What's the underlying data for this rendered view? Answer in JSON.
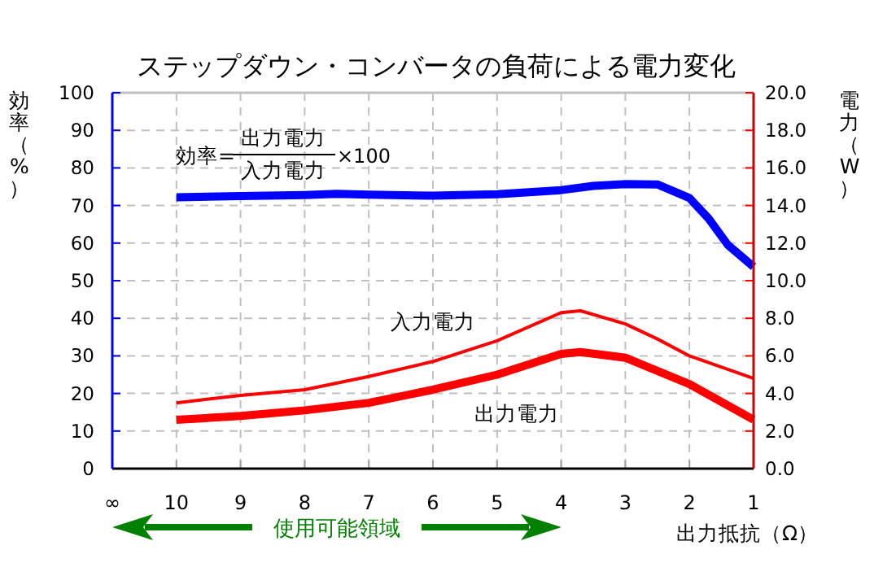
{
  "chart_data": {
    "type": "line",
    "title": "ステップダウン・コンバータの負荷による電力変化",
    "xlabel": "出力抵抗（Ω）",
    "ylabel": "効率（%）",
    "y2label": "電力（W）",
    "annotations": [
      "効率=",
      "出力電力",
      "入力電力",
      "×100",
      "使用可能領域"
    ],
    "xlim": [
      11,
      1
    ],
    "xticks": [
      {
        "value": 11,
        "label": "∞"
      },
      10,
      9,
      8,
      7,
      6,
      5,
      4,
      3,
      2,
      1
    ],
    "ylim": [
      0,
      100
    ],
    "yticks": [
      0,
      10,
      20,
      30,
      40,
      50,
      60,
      70,
      80,
      90,
      100
    ],
    "y2lim": [
      0,
      20
    ],
    "y2ticks": [
      {
        "value": 0,
        "label": "0.0"
      },
      {
        "value": 2,
        "label": "2.0"
      },
      {
        "value": 4,
        "label": "4.0"
      },
      {
        "value": 6,
        "label": "6.0"
      },
      {
        "value": 8,
        "label": "8.0"
      },
      {
        "value": 10,
        "label": "10.0"
      },
      {
        "value": 12,
        "label": "12.0"
      },
      {
        "value": 14,
        "label": "14.0"
      },
      {
        "value": 16,
        "label": "16.0"
      },
      {
        "value": 18,
        "label": "18.0"
      },
      {
        "value": 20,
        "label": "20.0"
      }
    ],
    "grid": true,
    "series": [
      {
        "color": "#0000ff",
        "x": [
          10,
          9,
          8,
          7.5,
          7,
          6,
          5,
          4,
          3.5,
          3,
          2.5,
          2,
          1.7,
          1.4,
          1
        ],
        "values": [
          72.2,
          72.5,
          72.8,
          73.1,
          72.9,
          72.6,
          73.0,
          74.1,
          75.2,
          75.7,
          75.6,
          72.0,
          66.5,
          59.5,
          53.7
        ]
      },
      {
        "name": "入力電力",
        "axis": "y2",
        "color": "#ff0000",
        "x": [
          10,
          9,
          8,
          7,
          6,
          5,
          4,
          3.7,
          3.4,
          3,
          2.5,
          2,
          1
        ],
        "values": [
          3.5,
          3.9,
          4.2,
          4.9,
          5.7,
          6.8,
          8.3,
          8.4,
          8.1,
          7.7,
          6.9,
          6.0,
          4.8
        ]
      },
      {
        "name": "出力電力",
        "axis": "y2",
        "color": "#ff0000",
        "x": [
          10,
          9,
          8,
          7,
          6,
          5,
          4,
          3.7,
          3,
          2,
          1
        ],
        "values": [
          2.6,
          2.8,
          3.1,
          3.5,
          4.2,
          5.0,
          6.1,
          6.2,
          5.9,
          4.5,
          2.6
        ]
      }
    ]
  }
}
